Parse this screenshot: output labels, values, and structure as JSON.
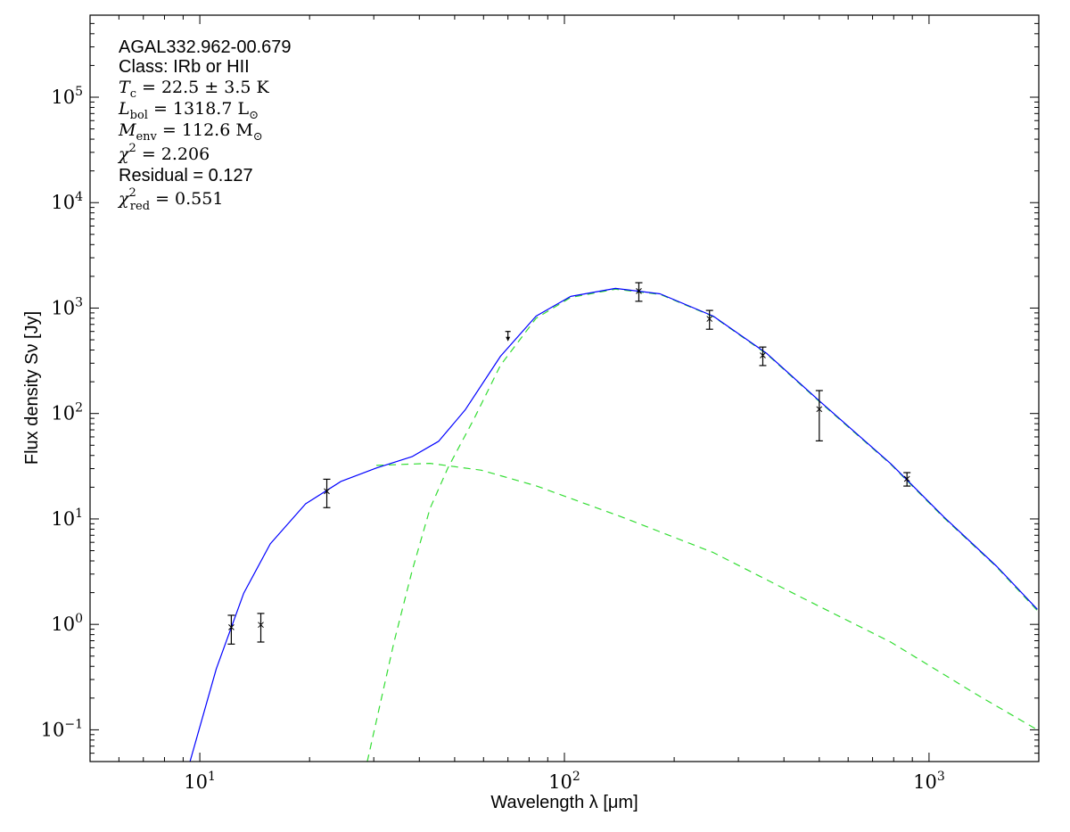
{
  "chart_data": {
    "type": "scatter",
    "xlabel": "Wavelength λ [μm]",
    "ylabel": "Flux density Sν [Jy]",
    "xscale": "log",
    "yscale": "log",
    "xlim": [
      5,
      2000
    ],
    "ylim": [
      0.05,
      600000
    ],
    "grid": false,
    "x_tick_labels": [
      {
        "base": "10",
        "exp": "1",
        "value": 10
      },
      {
        "base": "10",
        "exp": "2",
        "value": 100
      },
      {
        "base": "10",
        "exp": "3",
        "value": 1000
      }
    ],
    "y_tick_labels": [
      {
        "base": "10",
        "exp": "−1",
        "value": 0.1
      },
      {
        "base": "10",
        "exp": "0",
        "value": 1
      },
      {
        "base": "10",
        "exp": "1",
        "value": 10
      },
      {
        "base": "10",
        "exp": "2",
        "value": 100
      },
      {
        "base": "10",
        "exp": "3",
        "value": 1000
      },
      {
        "base": "10",
        "exp": "4",
        "value": 10000
      },
      {
        "base": "10",
        "exp": "5",
        "value": 100000
      }
    ],
    "annotations": [
      {
        "text": "AGAL332.962-00.679",
        "style": "sans"
      },
      {
        "text": "Class: IRb or HII",
        "style": "sans"
      },
      {
        "sym": "T",
        "sub": "c",
        "text": " = 22.5 ± 3.5 K",
        "style": "math"
      },
      {
        "sym": "L",
        "sub": "bol",
        "text": " = 1318.7 L",
        "sub2": "⊙",
        "style": "math"
      },
      {
        "sym": "M",
        "sub": "env",
        "text": " = 112.6 M",
        "sub2": "⊙",
        "style": "math"
      },
      {
        "sym": "χ",
        "sup": "2",
        "text": " = 2.206",
        "style": "math"
      },
      {
        "text": "Residual = 0.127",
        "style": "sans"
      },
      {
        "sym": "χ",
        "sup": "2",
        "sub": "red",
        "text": " = 0.551",
        "style": "math"
      }
    ],
    "points": [
      {
        "x": 12.2,
        "y": 0.94,
        "ylo": 0.65,
        "yhi": 1.22
      },
      {
        "x": 14.7,
        "y": 0.99,
        "ylo": 0.68,
        "yhi": 1.27
      },
      {
        "x": 22.3,
        "y": 18.3,
        "ylo": 12.8,
        "yhi": 23.8
      },
      {
        "x": 160,
        "y": 1450,
        "ylo": 1160,
        "yhi": 1740
      },
      {
        "x": 250,
        "y": 790,
        "ylo": 630,
        "yhi": 950
      },
      {
        "x": 350,
        "y": 356,
        "ylo": 285,
        "yhi": 427
      },
      {
        "x": 500,
        "y": 110,
        "ylo": 55,
        "yhi": 165
      },
      {
        "x": 870,
        "y": 24,
        "ylo": 20.5,
        "yhi": 27.5
      }
    ],
    "upper_limits": [
      {
        "x": 70,
        "y": 600
      }
    ],
    "series": [
      {
        "style": "solid",
        "color": "#0000ff",
        "x": [
          9.4,
          11.1,
          13.2,
          15.6,
          19.5,
          24.4,
          30.5,
          38.2,
          45.2,
          53.4,
          66.8,
          83.6,
          104,
          138,
          183,
          256,
          359,
          501,
          785,
          1100,
          1532,
          1982
        ],
        "y": [
          0.05,
          0.38,
          1.98,
          5.8,
          13.9,
          22.7,
          30.4,
          39,
          54.6,
          108,
          349,
          839,
          1290,
          1536,
          1364,
          839,
          371,
          131,
          33.5,
          10.4,
          3.56,
          1.39
        ]
      },
      {
        "style": "dashed",
        "color": "#33dd33",
        "x": [
          28.8,
          34.1,
          38.2,
          42.8,
          47.9,
          56.5,
          66.8,
          83.6,
          104,
          138,
          183,
          256,
          359,
          501,
          785,
          1100,
          1532,
          1982
        ],
        "y": [
          0.05,
          0.68,
          3.2,
          12.6,
          30.4,
          89,
          287,
          800,
          1260,
          1510,
          1350,
          830,
          366,
          129,
          33,
          10.2,
          3.5,
          1.35
        ]
      },
      {
        "style": "dashed",
        "color": "#33dd33",
        "x": [
          30.5,
          42.8,
          59.2,
          83.6,
          144,
          256,
          447,
          785,
          1370,
          1982
        ],
        "y": [
          32.2,
          33.7,
          29,
          20.6,
          10.4,
          4.8,
          1.8,
          0.68,
          0.21,
          0.1
        ]
      }
    ]
  }
}
